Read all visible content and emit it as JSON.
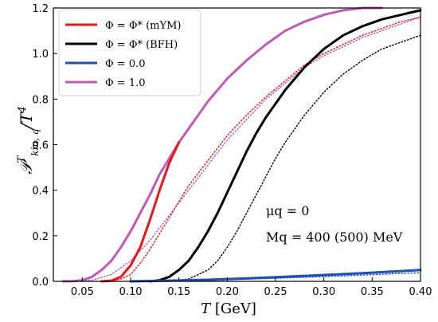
{
  "chart_data": {
    "type": "line",
    "xlabel": "T [GeV]",
    "ylabel": "𝒫ᵀkin,q/T⁴",
    "xlim": [
      0.02,
      0.4
    ],
    "ylim": [
      0.0,
      1.2
    ],
    "xticks": [
      "0.05",
      "0.10",
      "0.15",
      "0.20",
      "0.25",
      "0.30",
      "0.35",
      "0.40"
    ],
    "yticks": [
      "0.0",
      "0.2",
      "0.4",
      "0.6",
      "0.8",
      "1.0",
      "1.2"
    ],
    "grid": false,
    "legend_placement": "top-left",
    "legend": [
      {
        "label": "Φ = Φ* (mYM)",
        "color": "#e8161b"
      },
      {
        "label": "Φ = Φ* (BFH)",
        "color": "#000000"
      },
      {
        "label": "Φ = 0.0",
        "color": "#1f4eb4"
      },
      {
        "label": "Φ = 1.0",
        "color": "#c05ab8"
      }
    ],
    "annotations": [
      "μq = 0",
      "Mq = 400 (500) MeV"
    ],
    "series": [
      {
        "name": "Φ = 1.0",
        "color": "#c05ab8",
        "style": "solid",
        "x": [
          0.03,
          0.04,
          0.05,
          0.06,
          0.07,
          0.08,
          0.09,
          0.1,
          0.11,
          0.12,
          0.13,
          0.14,
          0.15,
          0.16,
          0.18,
          0.2,
          0.22,
          0.24,
          0.26,
          0.28,
          0.3,
          0.32,
          0.34,
          0.36
        ],
        "y": [
          0.0,
          0.001,
          0.005,
          0.02,
          0.05,
          0.09,
          0.15,
          0.22,
          0.3,
          0.38,
          0.47,
          0.54,
          0.61,
          0.67,
          0.79,
          0.89,
          0.97,
          1.04,
          1.1,
          1.14,
          1.17,
          1.19,
          1.2,
          1.2
        ]
      },
      {
        "name": "Φ = 1.0",
        "color": "#c05ab8",
        "style": "dotted",
        "x": [
          0.04,
          0.06,
          0.08,
          0.1,
          0.12,
          0.14,
          0.16,
          0.18,
          0.2,
          0.22,
          0.24,
          0.26,
          0.28,
          0.3,
          0.32,
          0.34,
          0.36,
          0.38,
          0.4
        ],
        "y": [
          0.0,
          0.005,
          0.03,
          0.09,
          0.18,
          0.29,
          0.4,
          0.51,
          0.62,
          0.71,
          0.8,
          0.87,
          0.94,
          0.99,
          1.03,
          1.07,
          1.1,
          1.13,
          1.16
        ]
      },
      {
        "name": "Φ = Φ* (mYM)",
        "color": "#e8161b",
        "style": "solid",
        "x": [
          0.07,
          0.08,
          0.09,
          0.1,
          0.11,
          0.12,
          0.13,
          0.14,
          0.15
        ],
        "y": [
          0.0,
          0.003,
          0.02,
          0.07,
          0.15,
          0.27,
          0.4,
          0.52,
          0.61
        ]
      },
      {
        "name": "Φ = Φ* (mYM)",
        "color": "#e8161b",
        "style": "dotted",
        "x": [
          0.08,
          0.09,
          0.1,
          0.11,
          0.12,
          0.13,
          0.14,
          0.15,
          0.16,
          0.18,
          0.2,
          0.22,
          0.24,
          0.26,
          0.28,
          0.3,
          0.32,
          0.34,
          0.36,
          0.38,
          0.4
        ],
        "y": [
          0.0,
          0.01,
          0.03,
          0.08,
          0.14,
          0.21,
          0.28,
          0.35,
          0.42,
          0.53,
          0.64,
          0.73,
          0.81,
          0.88,
          0.95,
          1.0,
          1.04,
          1.08,
          1.11,
          1.14,
          1.16
        ]
      },
      {
        "name": "Φ = Φ* (BFH)",
        "color": "#000000",
        "style": "solid",
        "x": [
          0.12,
          0.13,
          0.14,
          0.15,
          0.16,
          0.17,
          0.18,
          0.19,
          0.2,
          0.21,
          0.22,
          0.23,
          0.24,
          0.26,
          0.28,
          0.3,
          0.32,
          0.34,
          0.36,
          0.38,
          0.4
        ],
        "y": [
          0.0,
          0.005,
          0.02,
          0.05,
          0.09,
          0.15,
          0.22,
          0.3,
          0.39,
          0.48,
          0.57,
          0.65,
          0.72,
          0.84,
          0.94,
          1.02,
          1.08,
          1.12,
          1.15,
          1.17,
          1.19
        ]
      },
      {
        "name": "Φ = Φ* (BFH)",
        "color": "#000000",
        "style": "dotted",
        "x": [
          0.14,
          0.16,
          0.18,
          0.19,
          0.2,
          0.21,
          0.22,
          0.23,
          0.24,
          0.25,
          0.26,
          0.28,
          0.3,
          0.32,
          0.34,
          0.36,
          0.38,
          0.4
        ],
        "y": [
          0.0,
          0.01,
          0.05,
          0.09,
          0.15,
          0.22,
          0.3,
          0.38,
          0.46,
          0.54,
          0.61,
          0.73,
          0.83,
          0.91,
          0.97,
          1.02,
          1.05,
          1.08
        ]
      },
      {
        "name": "Φ = 0.0",
        "color": "#1f4eb4",
        "style": "solid",
        "x": [
          0.1,
          0.14,
          0.18,
          0.22,
          0.26,
          0.3,
          0.34,
          0.38,
          0.4
        ],
        "y": [
          0.0,
          0.003,
          0.007,
          0.013,
          0.02,
          0.028,
          0.036,
          0.045,
          0.05
        ]
      },
      {
        "name": "Φ = 0.0",
        "color": "#1f4eb4",
        "style": "dotted",
        "x": [
          0.12,
          0.16,
          0.2,
          0.24,
          0.28,
          0.32,
          0.36,
          0.4
        ],
        "y": [
          0.0,
          0.003,
          0.007,
          0.012,
          0.018,
          0.024,
          0.031,
          0.038
        ]
      }
    ]
  }
}
